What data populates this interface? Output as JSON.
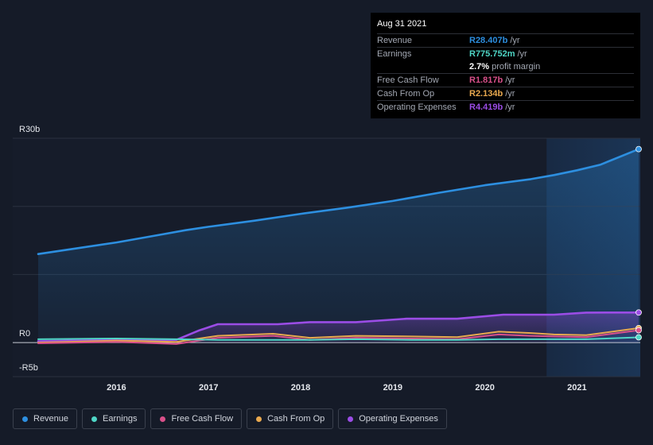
{
  "tooltip": {
    "date": "Aug 31 2021",
    "rows": [
      {
        "label": "Revenue",
        "value": "R28.407b",
        "unit": "/yr",
        "color": "#2d8fe0"
      },
      {
        "label": "Earnings",
        "value": "R775.752m",
        "unit": "/yr",
        "color": "#4fd6c6"
      },
      {
        "label": "",
        "value": "2.7%",
        "unit": "profit margin",
        "color": "#ffffff"
      },
      {
        "label": "Free Cash Flow",
        "value": "R1.817b",
        "unit": "/yr",
        "color": "#d9508a"
      },
      {
        "label": "Cash From Op",
        "value": "R2.134b",
        "unit": "/yr",
        "color": "#e9a94f"
      },
      {
        "label": "Operating Expenses",
        "value": "R4.419b",
        "unit": "/yr",
        "color": "#9b4de6"
      }
    ]
  },
  "legend": [
    {
      "label": "Revenue",
      "color": "#2d8fe0"
    },
    {
      "label": "Earnings",
      "color": "#4fd6c6"
    },
    {
      "label": "Free Cash Flow",
      "color": "#d9508a"
    },
    {
      "label": "Cash From Op",
      "color": "#e9a94f"
    },
    {
      "label": "Operating Expenses",
      "color": "#9b4de6"
    }
  ],
  "chart_data": {
    "type": "line",
    "y_tick_labels": [
      {
        "value": 30,
        "label": "R30b"
      },
      {
        "value": 0,
        "label": "R0"
      },
      {
        "value": -5,
        "label": "-R5b"
      }
    ],
    "ylim": [
      -5,
      30
    ],
    "xlim": [
      2015.15,
      2021.67
    ],
    "x_ticks": [
      2016,
      2017,
      2018,
      2019,
      2020,
      2021
    ],
    "forecast_start": 2020.67,
    "series": [
      {
        "name": "Revenue",
        "color": "#2d8fe0",
        "area": true,
        "x": [
          2015.15,
          2015.5,
          2016.0,
          2016.5,
          2016.75,
          2017.0,
          2017.5,
          2018.0,
          2018.5,
          2019.0,
          2019.5,
          2020.0,
          2020.5,
          2020.75,
          2021.0,
          2021.25,
          2021.67
        ],
        "y": [
          13.0,
          13.7,
          14.7,
          15.9,
          16.5,
          17.0,
          17.9,
          18.9,
          19.8,
          20.8,
          22.0,
          23.1,
          24.0,
          24.6,
          25.3,
          26.1,
          28.407
        ]
      },
      {
        "name": "Operating Expenses",
        "color": "#9b4de6",
        "area": true,
        "x": [
          2015.15,
          2016.0,
          2016.65,
          2016.9,
          2017.1,
          2017.5,
          2017.75,
          2018.1,
          2018.6,
          2019.15,
          2019.7,
          2020.2,
          2020.75,
          2021.1,
          2021.67
        ],
        "y": [
          0.2,
          0.4,
          0.4,
          1.8,
          2.7,
          2.7,
          2.7,
          3.0,
          3.0,
          3.5,
          3.5,
          4.1,
          4.1,
          4.4,
          4.419
        ]
      },
      {
        "name": "Cash From Op",
        "color": "#e9a94f",
        "area": false,
        "x": [
          2015.15,
          2016.0,
          2016.65,
          2017.1,
          2017.7,
          2018.1,
          2018.6,
          2019.2,
          2019.7,
          2020.15,
          2020.5,
          2020.75,
          2021.1,
          2021.67
        ],
        "y": [
          0.0,
          0.3,
          0.1,
          1.0,
          1.3,
          0.7,
          1.0,
          0.9,
          0.8,
          1.6,
          1.4,
          1.2,
          1.1,
          2.134
        ]
      },
      {
        "name": "Free Cash Flow",
        "color": "#d9508a",
        "area": false,
        "x": [
          2015.15,
          2016.0,
          2016.65,
          2017.1,
          2017.7,
          2018.1,
          2018.6,
          2019.2,
          2019.7,
          2020.15,
          2020.5,
          2020.75,
          2021.1,
          2021.67
        ],
        "y": [
          -0.1,
          0.1,
          -0.2,
          0.7,
          1.0,
          0.4,
          0.7,
          0.6,
          0.5,
          1.2,
          1.0,
          0.9,
          0.8,
          1.817
        ]
      },
      {
        "name": "Earnings",
        "color": "#4fd6c6",
        "area": false,
        "x": [
          2015.15,
          2016.0,
          2016.65,
          2017.1,
          2017.7,
          2018.1,
          2018.6,
          2019.2,
          2019.7,
          2020.15,
          2020.5,
          2020.75,
          2021.1,
          2021.67
        ],
        "y": [
          0.5,
          0.6,
          0.5,
          0.4,
          0.4,
          0.4,
          0.5,
          0.4,
          0.4,
          0.5,
          0.5,
          0.5,
          0.5,
          0.776
        ]
      }
    ]
  }
}
